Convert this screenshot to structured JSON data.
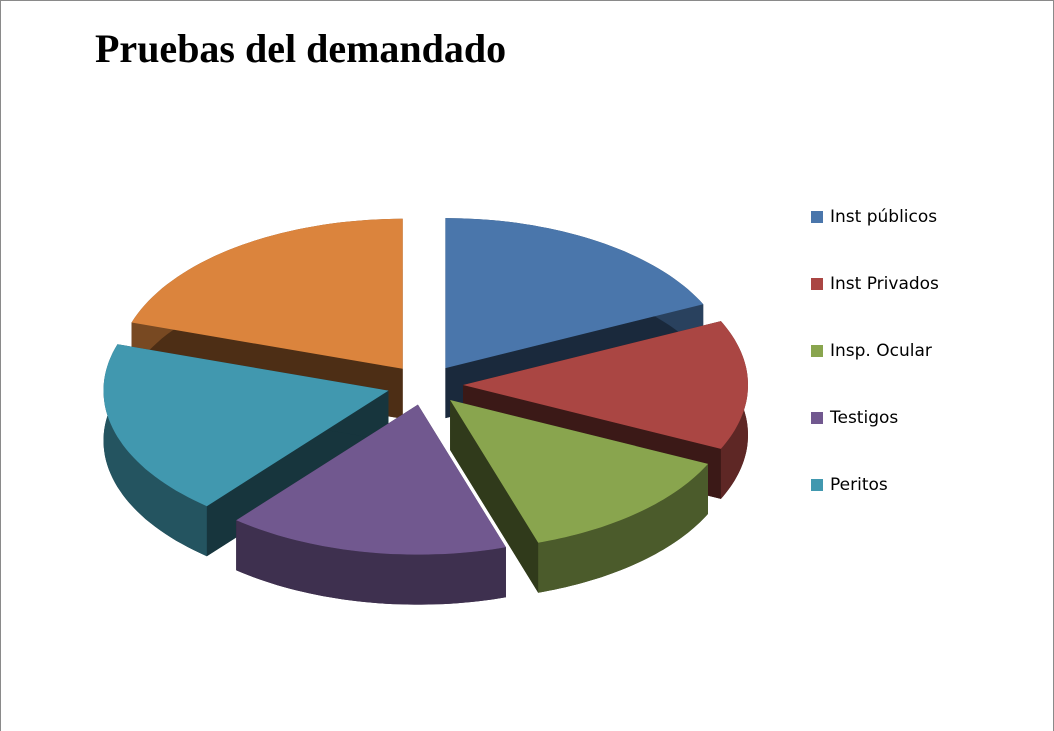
{
  "chart_data": {
    "type": "pie3d",
    "title": "Pruebas del demandado",
    "categories": [
      "Inst públicos",
      "Inst Privados",
      "Insp. Ocular",
      "Testigos",
      "Peritos",
      null
    ],
    "values": [
      18,
      14,
      13,
      16,
      19,
      20
    ],
    "colors": [
      "#4a76ab",
      "#aa4643",
      "#89a54e",
      "#71588f",
      "#4198af",
      "#db843d"
    ],
    "legend": "right"
  }
}
